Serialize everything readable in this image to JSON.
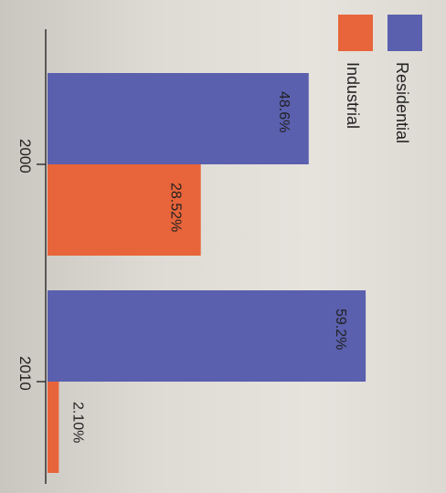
{
  "chart_data": {
    "type": "bar",
    "orientation": "horizontal",
    "categories": [
      "2000",
      "2010"
    ],
    "series": [
      {
        "name": "Residential",
        "values": [
          48.6,
          59.2
        ],
        "labels": [
          "48.6%",
          "59.2%"
        ],
        "color": "#5a5fae"
      },
      {
        "name": "Industrial",
        "values": [
          28.52,
          2.1
        ],
        "labels": [
          "28.52%",
          "2.10%"
        ],
        "color": "#e8643a"
      }
    ],
    "xlim": [
      0,
      65
    ],
    "legend_position": "top-right",
    "grid": false
  }
}
